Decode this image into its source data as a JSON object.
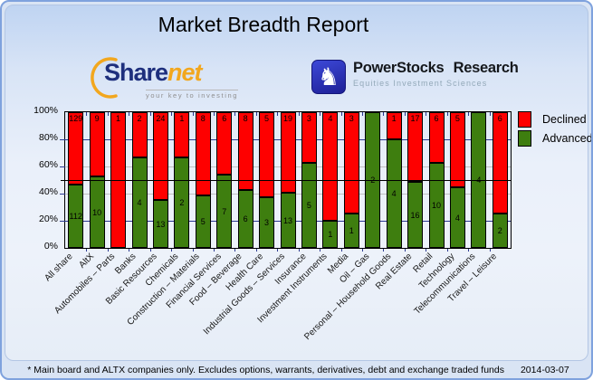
{
  "window": {
    "title": "Market Breadth Report"
  },
  "logos": {
    "sharenet": {
      "word_a": "Share",
      "word_b": "net",
      "tagline": "your key to investing"
    },
    "powerstocks": {
      "name": "PowerStocks Research",
      "tagline": "Equities Investment Sciences",
      "knight_glyph": "♞"
    }
  },
  "chart_data": {
    "type": "bar",
    "stacked": true,
    "normalized_to_percent": true,
    "title": "Market Breadth Report",
    "categories": [
      "All share",
      "AltX",
      "Automobiles – Parts",
      "Banks",
      "Basic Resources",
      "Chemicals",
      "Construction – Materials",
      "Financial Services",
      "Food – Beverage",
      "Health Care",
      "Industrial Goods – Services",
      "Insurance",
      "Investment Instruments",
      "Media",
      "Oil – Gas",
      "Personal – Household Goods",
      "Real Estate",
      "Retail",
      "Technology",
      "Telecommunications",
      "Travel – Leisure"
    ],
    "series": [
      {
        "name": "Declined",
        "color": "#fe0000",
        "values": [
          129,
          9,
          1,
          2,
          24,
          1,
          8,
          6,
          8,
          5,
          19,
          3,
          4,
          3,
          0,
          1,
          17,
          6,
          5,
          0,
          6
        ]
      },
      {
        "name": "Advanced",
        "color": "#3e7e0f",
        "values": [
          112,
          10,
          0,
          4,
          13,
          2,
          5,
          7,
          6,
          3,
          13,
          5,
          1,
          1,
          2,
          4,
          16,
          10,
          4,
          4,
          2
        ]
      }
    ],
    "y_tick_labels": [
      "100%",
      "80%",
      "60%",
      "40%",
      "20%",
      "0%"
    ],
    "ylim": [
      0,
      100
    ],
    "reference_line_percent": 50,
    "grid": "horizontal",
    "legend_position": "right"
  },
  "footer": {
    "note": "* Main board and ALTX companies only. Excludes options, warrants, derivatives, debt and exchange traded funds",
    "date": "2014-03-07"
  },
  "colors": {
    "declined": "#fe0000",
    "advanced": "#3e7e0f",
    "grid_minor": "#c0c0c0",
    "grid_navy": "#2b3990",
    "reference_line": "#000000"
  }
}
